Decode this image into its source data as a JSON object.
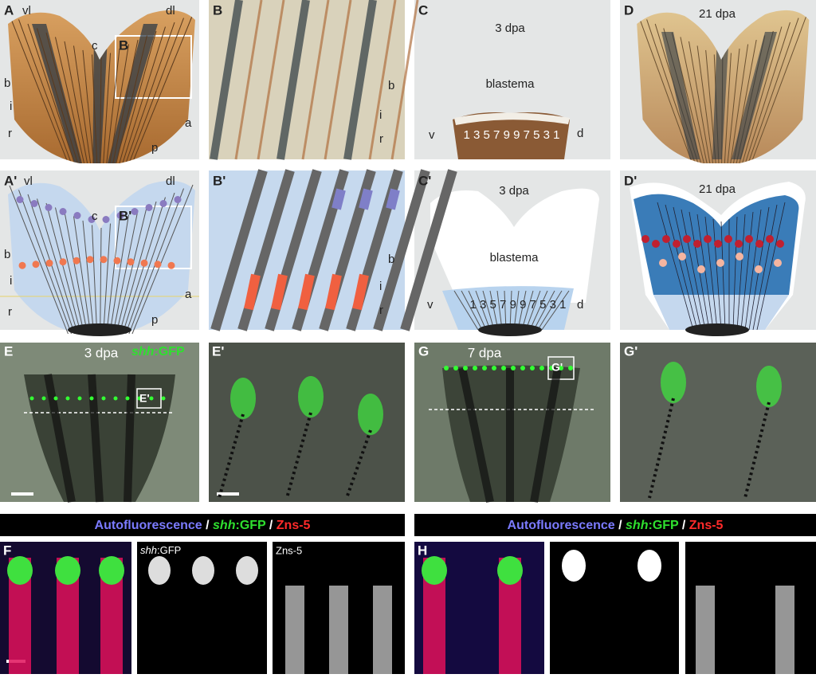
{
  "panels": {
    "A": {
      "label": "A",
      "vl": "vl",
      "dl": "dl",
      "c": "c",
      "inset": "B",
      "b": "b",
      "i": "i",
      "r": "r",
      "p": "p",
      "a": "a"
    },
    "B": {
      "label": "B",
      "b": "b",
      "i": "i",
      "r": "r"
    },
    "C": {
      "label": "C",
      "stage": "3 dpa",
      "blastema": "blastema",
      "v": "v",
      "rays": "1 3 5 7 9 9 7 5 3 1",
      "d": "d"
    },
    "D": {
      "label": "D",
      "stage": "21 dpa"
    },
    "A_prime": {
      "label": "A'",
      "vl": "vl",
      "dl": "dl",
      "c": "c",
      "inset": "B'",
      "b": "b",
      "i": "i",
      "r": "r",
      "p": "p",
      "a": "a"
    },
    "B_prime": {
      "label": "B'",
      "b": "b",
      "i": "i",
      "r": "r"
    },
    "C_prime": {
      "label": "C'",
      "stage": "3 dpa",
      "blastema": "blastema",
      "v": "v",
      "rays": "1 3 5 7 9 9 7 5 3 1",
      "d": "d"
    },
    "D_prime": {
      "label": "D'",
      "stage": "21 dpa"
    },
    "E": {
      "label": "E",
      "stage": "3 dpa",
      "gene": "shh",
      "reporter": ":GFP",
      "inset": "E'"
    },
    "E_prime": {
      "label": "E'"
    },
    "G": {
      "label": "G",
      "stage": "7 dpa",
      "inset": "G'"
    },
    "G_prime": {
      "label": "G'"
    },
    "F": {
      "label": "F",
      "channel1_gene": "shh",
      "channel1_reporter": ":GFP",
      "channel2": "Zns-5"
    },
    "H": {
      "label": "H"
    }
  },
  "headers": [
    {
      "autofluorescence": "Autofluorescence",
      "sep1": "/",
      "gene": "shh",
      "reporter": ":GFP",
      "sep2": "/",
      "marker": "Zns-5"
    },
    {
      "autofluorescence": "Autofluorescence",
      "sep1": "/",
      "gene": "shh",
      "reporter": ":GFP",
      "sep2": "/",
      "marker": "Zns-5"
    }
  ]
}
